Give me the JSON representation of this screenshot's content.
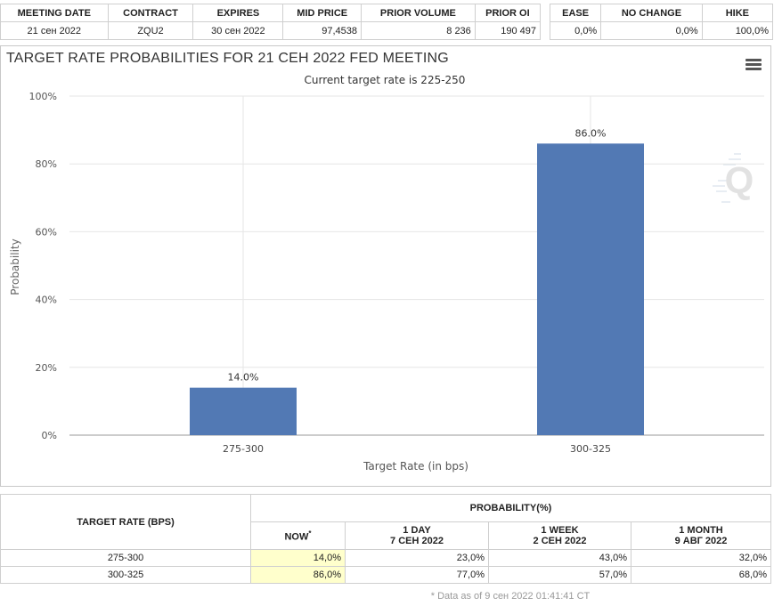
{
  "meeting_table": {
    "headers": [
      "MEETING DATE",
      "CONTRACT",
      "EXPIRES",
      "MID PRICE",
      "PRIOR VOLUME",
      "PRIOR OI"
    ],
    "row": [
      "21 сен 2022",
      "ZQU2",
      "30 сен 2022",
      "97,4538",
      "8 236",
      "190 497"
    ]
  },
  "ehn_table": {
    "headers": [
      "EASE",
      "NO CHANGE",
      "HIKE"
    ],
    "row": [
      "0,0%",
      "0,0%",
      "100,0%"
    ]
  },
  "menu_icon": "hamburger-menu-icon",
  "logo_icon": "q-logo-watermark",
  "chart_data": {
    "type": "bar",
    "title": "TARGET RATE PROBABILITIES FOR 21 СЕН 2022 FED MEETING",
    "subtitle": "Current target rate is 225-250",
    "xlabel": "Target Rate (in bps)",
    "ylabel": "Probability",
    "categories": [
      "275-300",
      "300-325"
    ],
    "values": [
      14.0,
      86.0
    ],
    "data_labels": [
      "14.0%",
      "86.0%"
    ],
    "ylim": [
      0,
      100
    ],
    "yticks": [
      0,
      20,
      40,
      60,
      80,
      100
    ],
    "ytick_labels": [
      "0%",
      "20%",
      "40%",
      "60%",
      "80%",
      "100%"
    ],
    "grid": true,
    "bar_color": "#5279b4"
  },
  "prob_table": {
    "target_header": "TARGET RATE (BPS)",
    "group_header": "PROBABILITY(%)",
    "columns": [
      {
        "line1": "NOW",
        "line2": "",
        "asterisk": "*"
      },
      {
        "line1": "1 DAY",
        "line2": "7 СЕН 2022"
      },
      {
        "line1": "1 WEEK",
        "line2": "2 СЕН 2022"
      },
      {
        "line1": "1 MONTH",
        "line2": "9 АВГ 2022"
      }
    ],
    "rows": [
      {
        "rate": "275-300",
        "values": [
          "14,0%",
          "23,0%",
          "43,0%",
          "32,0%"
        ]
      },
      {
        "rate": "300-325",
        "values": [
          "86,0%",
          "77,0%",
          "57,0%",
          "68,0%"
        ]
      }
    ],
    "now_highlight": "#ffffcc"
  },
  "note": "* Data as of 9 сен 2022 01:41:41 CT"
}
